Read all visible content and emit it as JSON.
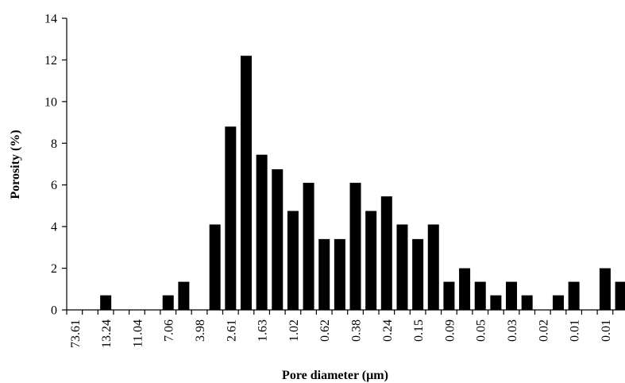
{
  "chart_data": {
    "type": "bar",
    "xlabel": "Pore diameter (µm)",
    "ylabel": "Porosity (%)",
    "ylim": [
      0,
      14
    ],
    "yticks": [
      0,
      2,
      4,
      6,
      8,
      10,
      12,
      14
    ],
    "grid": false,
    "bar_color": "#000000",
    "x_tick_labels": [
      "73.61",
      "13.24",
      "11.04",
      "7.06",
      "3.98",
      "2.61",
      "1.63",
      "1.02",
      "0.62",
      "0.38",
      "0.24",
      "0.15",
      "0.09",
      "0.05",
      "0.03",
      "0.02",
      "0.01",
      "0.01"
    ],
    "values": [
      0,
      0,
      0.7,
      0,
      0,
      0,
      0.7,
      1.35,
      0,
      4.1,
      8.8,
      12.2,
      7.45,
      6.75,
      4.75,
      6.1,
      3.4,
      3.4,
      6.1,
      4.75,
      5.45,
      4.1,
      3.4,
      4.1,
      1.35,
      2.0,
      1.35,
      0.7,
      1.35,
      0.7,
      0,
      0.7,
      1.35,
      0,
      2.0,
      1.35
    ]
  }
}
